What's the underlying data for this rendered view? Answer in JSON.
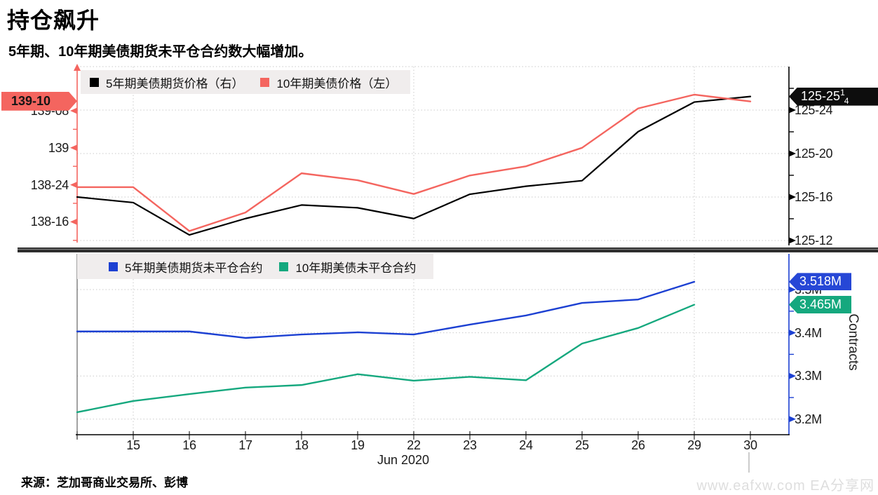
{
  "header": {
    "title": "持仓飙升",
    "subtitle": "5年期、10年期美债期货未平仓合约数大幅增加。"
  },
  "footer": {
    "source": "来源：芝加哥商业交易所、彭博",
    "watermark": "www.eafxw.com  EA分享网"
  },
  "chart_data": [
    {
      "type": "line",
      "panel": "price",
      "categories": [
        "",
        "15",
        "16",
        "17",
        "18",
        "19",
        "22",
        "23",
        "24",
        "25",
        "26",
        "29",
        "30"
      ],
      "series": [
        {
          "name": "5年期美债期货价格（右）",
          "axis": "right",
          "color": "#000000",
          "values": [
            125.5,
            125.484,
            125.391,
            125.438,
            125.477,
            125.469,
            125.438,
            125.508,
            125.531,
            125.547,
            125.688,
            125.773,
            125.789
          ]
        },
        {
          "name": "10年期美债价格（左）",
          "axis": "left",
          "color": "#f4655f",
          "values": [
            138.734,
            138.734,
            138.438,
            138.563,
            138.828,
            138.781,
            138.688,
            138.813,
            138.875,
            139.0,
            139.266,
            139.359,
            139.313
          ]
        }
      ],
      "left_axis": {
        "ticks": [
          {
            "label": "139-08",
            "value": 139.25
          },
          {
            "label": "139",
            "value": 139.0
          },
          {
            "label": "138-24",
            "value": 138.75
          },
          {
            "label": "138-16",
            "value": 138.5
          }
        ],
        "minor_values": [
          139.125,
          138.875,
          138.625,
          138.375
        ],
        "badge": {
          "label": "139-10",
          "value": 139.3125,
          "color": "#f4655f"
        }
      },
      "right_axis": {
        "ticks": [
          {
            "label": "125-24",
            "value": 125.75
          },
          {
            "label": "125-20",
            "value": 125.625
          },
          {
            "label": "125-16",
            "value": 125.5
          },
          {
            "label": "125-12",
            "value": 125.375
          }
        ],
        "minor_values": [
          125.8125,
          125.6875,
          125.5625,
          125.4375
        ],
        "badge": {
          "label": "125-25",
          "frac_num": "1",
          "frac_den": "4",
          "value": 125.789,
          "color": "#0d0d0d"
        }
      }
    },
    {
      "type": "line",
      "panel": "open-interest",
      "categories": [
        "",
        "15",
        "16",
        "17",
        "18",
        "19",
        "22",
        "23",
        "24",
        "25",
        "26",
        "29",
        "30"
      ],
      "xlabel": "Jun 2020",
      "ylabel": "Contracts",
      "series": [
        {
          "name": "5年期美债期货未平仓合约",
          "axis": "right",
          "color": "#1c40d2",
          "values": [
            3.403,
            3.403,
            3.403,
            3.388,
            3.396,
            3.401,
            3.396,
            3.419,
            3.44,
            3.469,
            3.477,
            3.518
          ]
        },
        {
          "name": "10年期美债未平仓合约",
          "axis": "right",
          "color": "#15a87e",
          "values": [
            3.216,
            3.242,
            3.258,
            3.273,
            3.279,
            3.304,
            3.289,
            3.298,
            3.29,
            3.375,
            3.411,
            3.465
          ]
        }
      ],
      "right_axis": {
        "ticks": [
          {
            "label": "3.5M",
            "value": 3.5
          },
          {
            "label": "3.4M",
            "value": 3.4
          },
          {
            "label": "3.3M",
            "value": 3.3
          },
          {
            "label": "3.2M",
            "value": 3.2
          }
        ],
        "minor_values": [
          3.45,
          3.35,
          3.25
        ],
        "badges": [
          {
            "label": "3.518M",
            "value": 3.518,
            "color": "#2647d6"
          },
          {
            "label": "3.465M",
            "value": 3.465,
            "color": "#15a87e"
          }
        ]
      }
    }
  ]
}
